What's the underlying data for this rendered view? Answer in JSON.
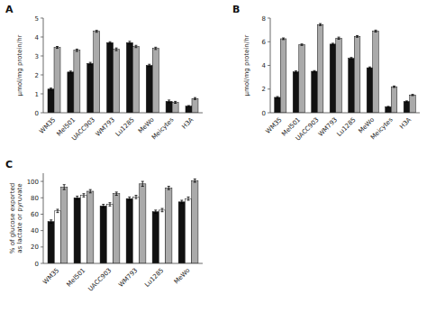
{
  "chart_data": [
    {
      "type": "bar",
      "title": "A",
      "categories": [
        "WM35",
        "Mel501",
        "UACC903",
        "WM793",
        "Lu1285",
        "MeWo",
        "Meicytes",
        "H3A"
      ],
      "series": [
        {
          "color": "#111111",
          "values": [
            1.25,
            2.15,
            2.6,
            3.7,
            3.7,
            2.5,
            0.6,
            0.35
          ],
          "errors": [
            0.05,
            0.05,
            0.06,
            0.05,
            0.07,
            0.06,
            0.07,
            0.03
          ]
        },
        {
          "color": "#aaaaaa",
          "values": [
            3.45,
            3.3,
            4.3,
            3.35,
            3.5,
            3.4,
            0.55,
            0.75
          ],
          "errors": [
            0.05,
            0.06,
            0.05,
            0.07,
            0.06,
            0.06,
            0.05,
            0.05
          ]
        }
      ],
      "ylabel": "μmol/mg protein/hr",
      "ylim": [
        0,
        5
      ],
      "yticks": [
        0,
        1,
        2,
        3,
        4,
        5
      ]
    },
    {
      "type": "bar",
      "title": "B",
      "categories": [
        "WM35",
        "Mel501",
        "UACC903",
        "WM793",
        "Lu1285",
        "MeWo",
        "Meicytes",
        "H3A"
      ],
      "series": [
        {
          "color": "#111111",
          "values": [
            1.3,
            3.45,
            3.5,
            5.8,
            4.6,
            3.8,
            0.5,
            0.95
          ],
          "errors": [
            0.07,
            0.08,
            0.06,
            0.07,
            0.07,
            0.07,
            0.04,
            0.05
          ]
        },
        {
          "color": "#aaaaaa",
          "values": [
            6.25,
            5.75,
            7.45,
            6.3,
            6.45,
            6.9,
            2.2,
            1.5
          ],
          "errors": [
            0.07,
            0.06,
            0.08,
            0.09,
            0.07,
            0.08,
            0.06,
            0.05
          ]
        }
      ],
      "ylabel": "μmol/mg protein/hr",
      "ylim": [
        0,
        8
      ],
      "yticks": [
        0,
        2,
        4,
        6,
        8
      ]
    },
    {
      "type": "bar",
      "title": "C",
      "categories": [
        "WM35",
        "Mel501",
        "UACC903",
        "WM793",
        "Lu1285",
        "MeWo"
      ],
      "series": [
        {
          "color": "#111111",
          "values": [
            51,
            80,
            70,
            79,
            63,
            75
          ],
          "errors": [
            2,
            2,
            2,
            2,
            2,
            2
          ]
        },
        {
          "color": "#ffffff",
          "values": [
            64,
            83,
            72,
            81,
            65,
            79
          ],
          "errors": [
            2,
            2,
            2,
            2,
            2,
            2
          ]
        },
        {
          "color": "#aaaaaa",
          "values": [
            93,
            88,
            85,
            97,
            92,
            101
          ],
          "errors": [
            3,
            2,
            2,
            3,
            2,
            2
          ]
        }
      ],
      "ylabel": "% of glucose exported\nas lactate or pyruvate",
      "ylim": [
        0,
        110
      ],
      "yticks": [
        0,
        20,
        40,
        60,
        80,
        100
      ]
    }
  ]
}
